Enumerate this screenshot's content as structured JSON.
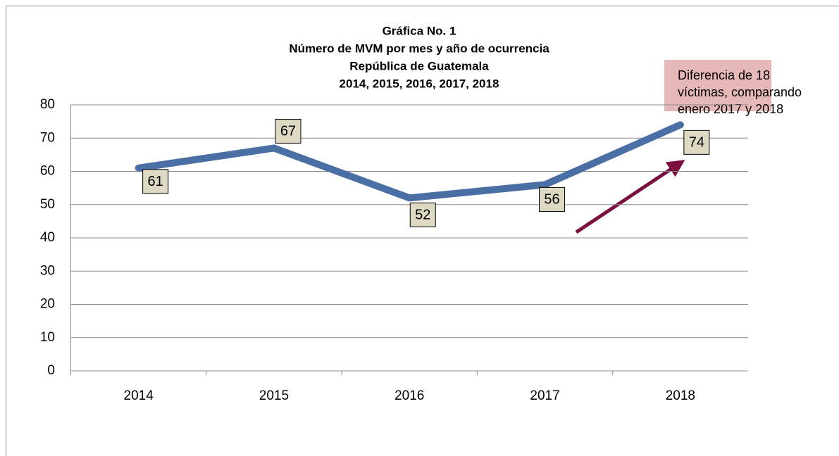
{
  "chart_data": {
    "type": "line",
    "title": [
      "Gráfica No. 1",
      "Número de MVM por mes y año de ocurrencia",
      "República de Guatemala",
      "2014, 2015, 2016, 2017, 2018"
    ],
    "categories": [
      "2014",
      "2015",
      "2016",
      "2017",
      "2018"
    ],
    "series": [
      {
        "color": "#4a6fa5",
        "values": [
          61,
          67,
          52,
          56,
          74
        ]
      }
    ],
    "ylim": [
      0,
      80
    ],
    "yticks": [
      0,
      10,
      20,
      30,
      40,
      50,
      60,
      70,
      80
    ],
    "grid": true,
    "annotation": [
      "Diferencia  de 18",
      "víctimas, comparando",
      "enero 2017 y 2018"
    ]
  }
}
